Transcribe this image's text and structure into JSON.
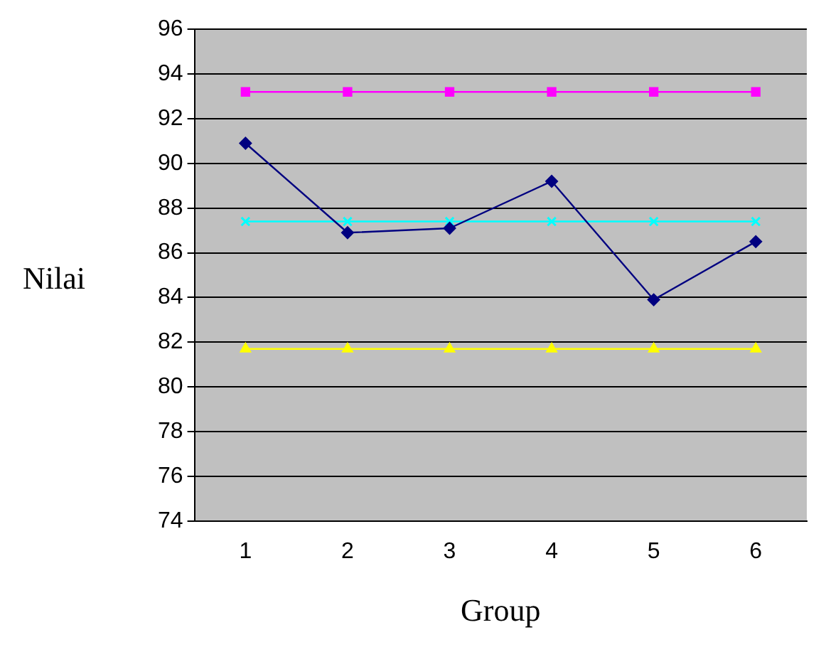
{
  "chart_data": {
    "type": "line",
    "xlabel": "Group",
    "ylabel": "Nilai",
    "categories": [
      "1",
      "2",
      "3",
      "4",
      "5",
      "6"
    ],
    "series": [
      {
        "color": "#000080",
        "marker": "diamond",
        "values": [
          90.9,
          86.9,
          87.1,
          89.2,
          83.9,
          86.5
        ]
      },
      {
        "color": "#ff00ff",
        "marker": "square",
        "values": [
          93.2,
          93.2,
          93.2,
          93.2,
          93.2,
          93.2
        ]
      },
      {
        "color": "#ffff00",
        "marker": "triangle",
        "values": [
          81.7,
          81.7,
          81.7,
          81.7,
          81.7,
          81.7
        ]
      },
      {
        "color": "#00ffff",
        "marker": "cross",
        "values": [
          87.4,
          87.4,
          87.4,
          87.4,
          87.4,
          87.4
        ]
      }
    ],
    "ylim": [
      74,
      96
    ],
    "yticks": [
      74,
      76,
      78,
      80,
      82,
      84,
      86,
      88,
      90,
      92,
      94,
      96
    ],
    "grid": "y",
    "legend": false
  }
}
